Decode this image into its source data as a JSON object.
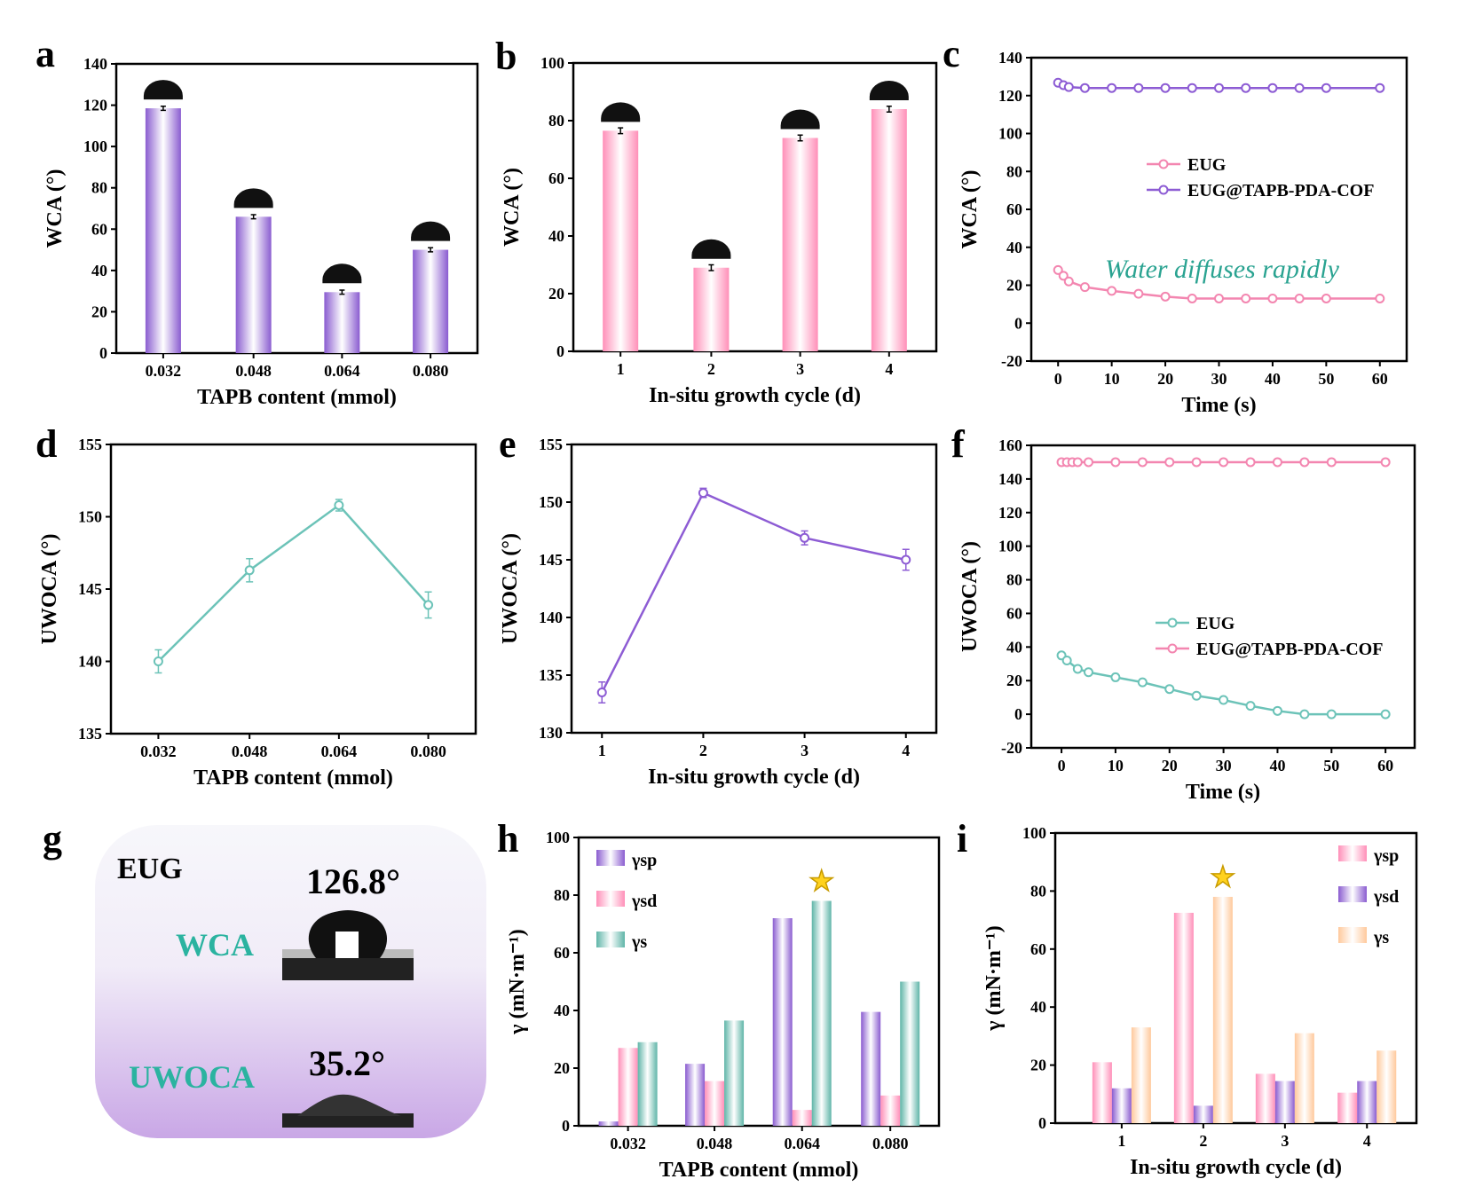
{
  "panel_labels": [
    "a",
    "b",
    "c",
    "d",
    "e",
    "f",
    "g",
    "h",
    "i"
  ],
  "panel_g": {
    "title": "EUG",
    "wca_label": "WCA",
    "wca_value": "126.8°",
    "uwoca_label": "UWOCA",
    "uwoca_value": "35.2°",
    "label_color": "#2bb3a0"
  },
  "annotation_c": "Water diffuses rapidly",
  "colors": {
    "purple": "#8a5cd0",
    "pink": "#ff8fb8",
    "teal": "#5fb5a8",
    "orange": "#ffc99c",
    "eug_line": "#f386b0",
    "cof_line": "#8d5cd4",
    "uwoca_line": "#6cc3b8"
  },
  "chart_data": [
    {
      "panel": "a",
      "type": "bar",
      "xlabel": "TAPB content (mmol)",
      "ylabel": "WCA (°)",
      "ylim": [
        0,
        140
      ],
      "yticks": [
        0,
        20,
        40,
        60,
        80,
        100,
        120,
        140
      ],
      "categories": [
        "0.032",
        "0.048",
        "0.064",
        "0.080"
      ],
      "series": [
        {
          "values": [
            118.5,
            66,
            29.5,
            50
          ],
          "errors": [
            1,
            1,
            1,
            1
          ],
          "color": "purple"
        }
      ]
    },
    {
      "panel": "b",
      "type": "bar",
      "xlabel": "In-situ growth cycle (d)",
      "ylabel": "WCA (°)",
      "ylim": [
        0,
        100
      ],
      "yticks": [
        0,
        20,
        40,
        60,
        80,
        100
      ],
      "categories": [
        "1",
        "2",
        "3",
        "4"
      ],
      "series": [
        {
          "values": [
            76.5,
            29,
            74,
            84
          ],
          "errors": [
            1,
            1,
            1,
            1
          ],
          "color": "pink"
        }
      ]
    },
    {
      "panel": "c",
      "type": "line",
      "xlabel": "Time (s)",
      "ylabel": "WCA (°)",
      "xlim": [
        -5,
        65
      ],
      "ylim": [
        -20,
        140
      ],
      "xticks": [
        0,
        10,
        20,
        30,
        40,
        50,
        60
      ],
      "yticks": [
        -20,
        0,
        20,
        40,
        60,
        80,
        100,
        120,
        140
      ],
      "legend_position": "center-right",
      "series": [
        {
          "name": "EUG",
          "color": "eug_line",
          "x": [
            0,
            1,
            2,
            5,
            10,
            15,
            20,
            25,
            30,
            35,
            40,
            45,
            50,
            60
          ],
          "y": [
            28,
            25,
            22,
            19,
            17,
            15.5,
            14,
            13,
            13,
            13,
            13,
            13,
            13,
            13
          ]
        },
        {
          "name": "EUG@TAPB-PDA-COF",
          "color": "cof_line",
          "x": [
            0,
            1,
            2,
            5,
            10,
            15,
            20,
            25,
            30,
            35,
            40,
            45,
            50,
            60
          ],
          "y": [
            126.8,
            125.5,
            124.5,
            124,
            124,
            124,
            124,
            124,
            124,
            124,
            124,
            124,
            124,
            124
          ]
        }
      ]
    },
    {
      "panel": "d",
      "type": "line",
      "xlabel": "TAPB content (mmol)",
      "ylabel": "UWOCA (°)",
      "ylim": [
        135,
        155
      ],
      "yticks": [
        135,
        140,
        145,
        150,
        155
      ],
      "categories": [
        "0.032",
        "0.048",
        "0.064",
        "0.080"
      ],
      "series": [
        {
          "color": "uwoca_line",
          "y": [
            140,
            146.3,
            150.8,
            143.9
          ],
          "errors": [
            0.8,
            0.8,
            0.4,
            0.9
          ]
        }
      ]
    },
    {
      "panel": "e",
      "type": "line",
      "xlabel": "In-situ growth cycle (d)",
      "ylabel": "UWOCA (°)",
      "xlim": [
        0.7,
        4.3
      ],
      "ylim": [
        130,
        155
      ],
      "xticks": [
        1,
        2,
        3,
        4
      ],
      "yticks": [
        130,
        135,
        140,
        145,
        150,
        155
      ],
      "series": [
        {
          "color": "cof_line",
          "x": [
            1,
            2,
            3,
            4
          ],
          "y": [
            133.5,
            150.8,
            146.9,
            145
          ],
          "errors": [
            0.9,
            0.4,
            0.6,
            0.9
          ]
        }
      ]
    },
    {
      "panel": "f",
      "type": "line",
      "xlabel": "Time (s)",
      "ylabel": "UWOCA (°)",
      "xlim": [
        -5.6,
        65.4
      ],
      "ylim": [
        -20,
        160
      ],
      "xticks": [
        0,
        10,
        20,
        30,
        40,
        50,
        60
      ],
      "yticks": [
        -20,
        0,
        20,
        40,
        60,
        80,
        100,
        120,
        140,
        160
      ],
      "legend_position": "center-right",
      "series": [
        {
          "name": "EUG",
          "color": "uwoca_line",
          "x": [
            0,
            1,
            3,
            5,
            10,
            15,
            20,
            25,
            30,
            35,
            40,
            45,
            50,
            60
          ],
          "y": [
            35,
            32,
            27,
            25,
            22,
            19,
            15,
            11,
            8.5,
            5,
            2,
            0,
            0,
            0
          ]
        },
        {
          "name": "EUG@TAPB-PDA-COF",
          "color": "eug_line",
          "x": [
            0,
            1,
            2,
            3,
            5,
            10,
            15,
            20,
            25,
            30,
            35,
            40,
            45,
            50,
            60
          ],
          "y": [
            150,
            150,
            150,
            150,
            150,
            150,
            150,
            150,
            150,
            150,
            150,
            150,
            150,
            150,
            150
          ]
        }
      ]
    },
    {
      "panel": "h",
      "type": "bar",
      "xlabel": "TAPB content (mmol)",
      "ylabel": "γ (mN·m⁻¹)",
      "ylim": [
        0,
        100
      ],
      "yticks": [
        0,
        20,
        40,
        60,
        80,
        100
      ],
      "categories": [
        "0.032",
        "0.048",
        "0.064",
        "0.080"
      ],
      "legend_position": "top-left",
      "highlight_category": "0.064",
      "series": [
        {
          "name": "γsp",
          "color": "purple",
          "values": [
            1.5,
            21.5,
            72,
            39.5
          ]
        },
        {
          "name": "γsd",
          "color": "pink",
          "values": [
            27,
            15.5,
            5.5,
            10.5
          ]
        },
        {
          "name": "γs",
          "color": "teal",
          "values": [
            29,
            36.5,
            78,
            50
          ]
        }
      ]
    },
    {
      "panel": "i",
      "type": "bar",
      "xlabel": "In-situ growth cycle (d)",
      "ylabel": "γ (mN·m⁻¹)",
      "ylim": [
        0,
        100
      ],
      "yticks": [
        0,
        20,
        40,
        60,
        80,
        100
      ],
      "categories": [
        "1",
        "2",
        "3",
        "4"
      ],
      "legend_position": "top-right",
      "highlight_category": "2",
      "series": [
        {
          "name": "γsp",
          "color": "pink",
          "values": [
            21,
            72.5,
            17,
            10.5
          ]
        },
        {
          "name": "γsd",
          "color": "purple",
          "values": [
            12,
            6,
            14.5,
            14.5
          ]
        },
        {
          "name": "γs",
          "color": "orange",
          "values": [
            33,
            78,
            31,
            25
          ]
        }
      ]
    }
  ]
}
